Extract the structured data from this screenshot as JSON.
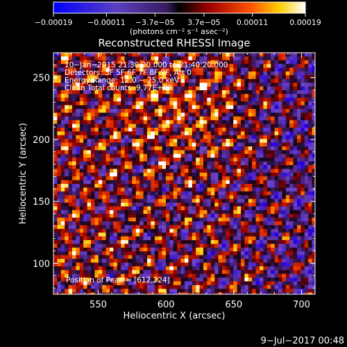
{
  "chart_data": {
    "type": "heatmap",
    "title": "Reconstructed RHESSI Image",
    "xlabel": "Heliocentric X (arcsec)",
    "ylabel": "Heliocentric Y (arcsec)",
    "xlim": [
      517,
      710
    ],
    "ylim": [
      75,
      270
    ],
    "x_ticks": [
      {
        "value": 550,
        "label": "550"
      },
      {
        "value": 600,
        "label": "600"
      },
      {
        "value": 650,
        "label": "650"
      },
      {
        "value": 700,
        "label": "700"
      }
    ],
    "y_ticks": [
      {
        "value": 100,
        "label": "100"
      },
      {
        "value": 150,
        "label": "150"
      },
      {
        "value": 200,
        "label": "200"
      },
      {
        "value": 250,
        "label": "250"
      }
    ],
    "colorbar": {
      "range": [
        -0.00019,
        0.00019
      ],
      "units": "(photons cm⁻² s⁻¹ asec⁻²)",
      "ticks": [
        {
          "value": -0.00019,
          "label": "−0.00019"
        },
        {
          "value": -0.00011,
          "label": "−0.00011"
        },
        {
          "value": -3.7e-05,
          "label": "−3.7e−05"
        },
        {
          "value": 3.7e-05,
          "label": "3.7e−05"
        },
        {
          "value": 0.00011,
          "label": "0.00011"
        },
        {
          "value": 0.00019,
          "label": "0.00019"
        }
      ]
    },
    "peak": {
      "x": 612,
      "y": 224
    },
    "annotations": [
      "10−Jan−2015 21:30:20.000 to 21:40:20.000",
      "Detectors: 3F 5F 6F 7F 8F 9F, Att 0",
      "Energy Range: 12.0 − 25.0 keV",
      "Clean     Total counts: 9.77E+03"
    ],
    "peak_label": "Position of Peak = [612,224]"
  },
  "footer": {
    "timestamp": "9−Jul−2017 00:48"
  },
  "colors": {
    "background": "#000000",
    "text": "#ffffff"
  }
}
